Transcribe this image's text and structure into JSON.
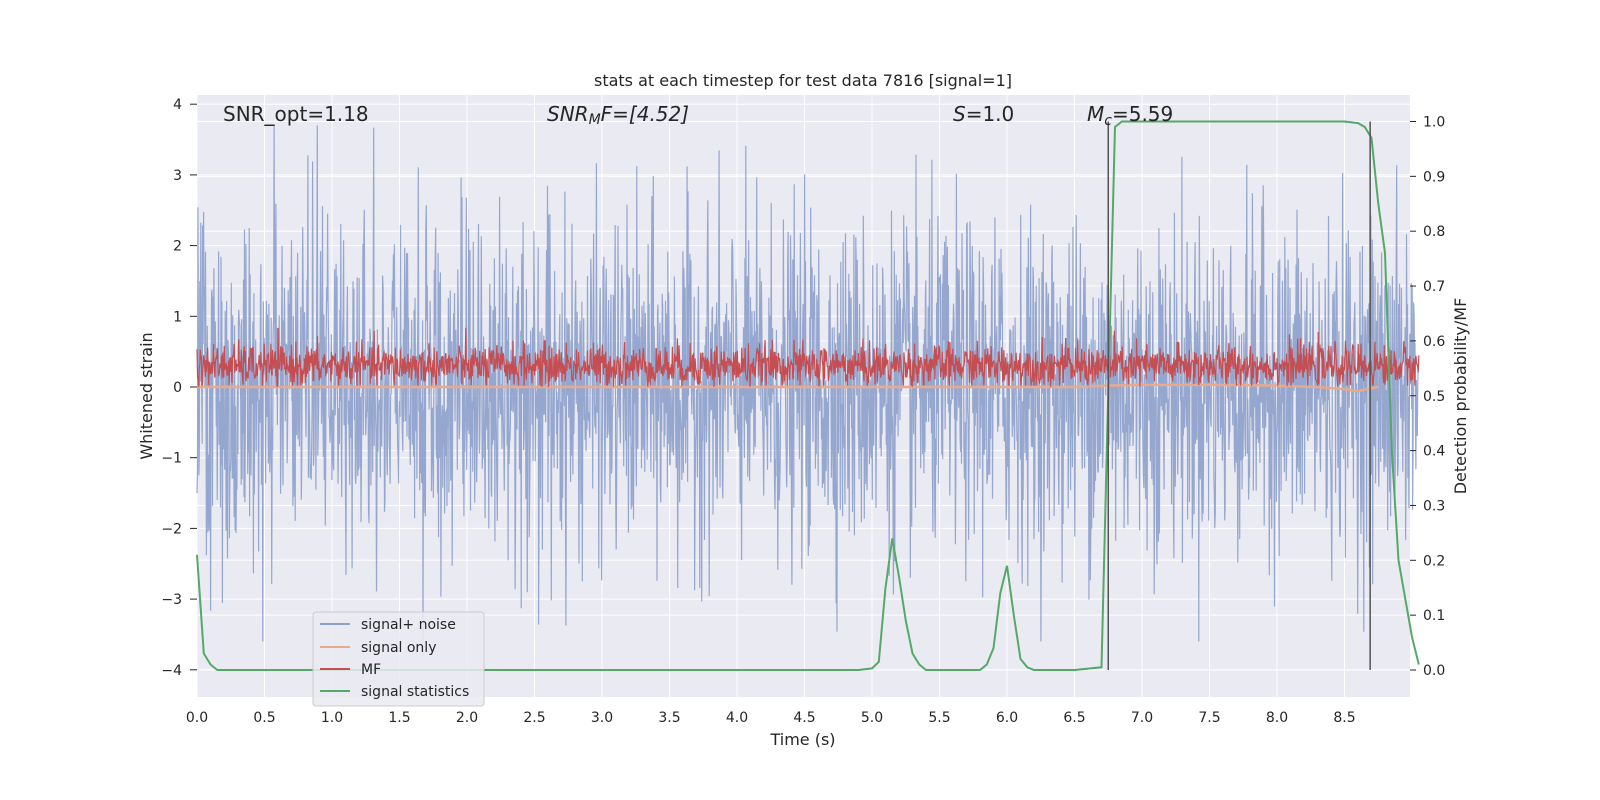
{
  "chart_data": {
    "type": "line",
    "title": "stats at each timestep for test data 7816 [signal=1]",
    "xlabel": "Time (s)",
    "ylabel_left": "Whitened strain",
    "ylabel_right": "Detection probability/MF",
    "xlim": [
      0.0,
      9.0
    ],
    "ylim_left": [
      -4.4,
      4.1
    ],
    "ylim_right": [
      -0.047,
      1.047
    ],
    "grid": true,
    "x_ticks": [
      "0.0",
      "0.5",
      "1.0",
      "1.5",
      "2.0",
      "2.5",
      "3.0",
      "3.5",
      "4.0",
      "4.5",
      "5.0",
      "5.5",
      "6.0",
      "6.5",
      "7.0",
      "7.5",
      "8.0",
      "8.5"
    ],
    "y_ticks_left": [
      "−4",
      "−3",
      "−2",
      "−1",
      "0",
      "1",
      "2",
      "3",
      "4"
    ],
    "y_ticks_right": [
      "0.0",
      "0.1",
      "0.2",
      "0.3",
      "0.4",
      "0.5",
      "0.6",
      "0.7",
      "0.8",
      "0.9",
      "1.0"
    ],
    "annotations": {
      "snr_opt": "SNR_opt=1.18",
      "snr_mf_main": "SNR",
      "snr_mf_sub": "M",
      "snr_mf_tail": "F=[4.52]",
      "s_main": "S",
      "s_tail": "=1.0",
      "mc_main": "M",
      "mc_sub": "c",
      "mc_tail": "=5.59"
    },
    "vertical_lines": [
      6.75,
      8.69
    ],
    "legend": {
      "placement": "lower-left",
      "entries": [
        "signal+ noise",
        "signal only",
        "MF",
        "signal statistics"
      ]
    },
    "colors": {
      "noise": "#8da0cb",
      "signal_only": "#e8a98d",
      "mf": "#c44e52",
      "stats": "#55a868",
      "background": "#eaeaf2",
      "grid": "#ffffff",
      "vline": "#555555"
    },
    "series": [
      {
        "name": "signal+ noise",
        "axis": "left",
        "summary": "dense gaussian noise approx. within [-3.6, 3.7]"
      },
      {
        "name": "signal only",
        "axis": "left",
        "x": [
          0.0,
          6.5,
          6.75,
          7.0,
          7.5,
          8.0,
          8.3,
          8.5,
          8.6,
          8.69,
          8.75
        ],
        "y": [
          0.0,
          0.0,
          0.02,
          0.03,
          0.03,
          0.02,
          0.0,
          -0.03,
          -0.06,
          -0.02,
          0.0
        ]
      },
      {
        "name": "MF",
        "axis": "left",
        "summary": "noisy trace approx. within [0.0, 1.0]"
      },
      {
        "name": "signal statistics",
        "axis": "right",
        "x": [
          0.0,
          0.05,
          0.1,
          0.15,
          0.2,
          0.25,
          0.5,
          1.0,
          2.0,
          3.0,
          4.0,
          4.9,
          5.0,
          5.05,
          5.1,
          5.15,
          5.2,
          5.25,
          5.3,
          5.35,
          5.4,
          5.45,
          5.5,
          5.55,
          5.8,
          5.85,
          5.9,
          5.95,
          6.0,
          6.05,
          6.1,
          6.15,
          6.2,
          6.5,
          6.7,
          6.75,
          6.8,
          6.85,
          7.0,
          8.0,
          8.5,
          8.6,
          8.65,
          8.7,
          8.75,
          8.8,
          8.85,
          8.9,
          9.0,
          9.05
        ],
        "y": [
          0.21,
          0.03,
          0.01,
          0.0,
          0.0,
          0.0,
          0.0,
          0.0,
          0.0,
          0.0,
          0.0,
          0.0,
          0.003,
          0.015,
          0.15,
          0.24,
          0.17,
          0.09,
          0.03,
          0.01,
          0.0,
          0.0,
          0.0,
          0.0,
          0.0,
          0.01,
          0.04,
          0.14,
          0.19,
          0.1,
          0.02,
          0.005,
          0.0,
          0.0,
          0.005,
          0.51,
          0.99,
          1.0,
          1.0,
          1.0,
          1.0,
          0.997,
          0.99,
          0.97,
          0.85,
          0.76,
          0.4,
          0.2,
          0.06,
          0.01
        ]
      }
    ]
  }
}
